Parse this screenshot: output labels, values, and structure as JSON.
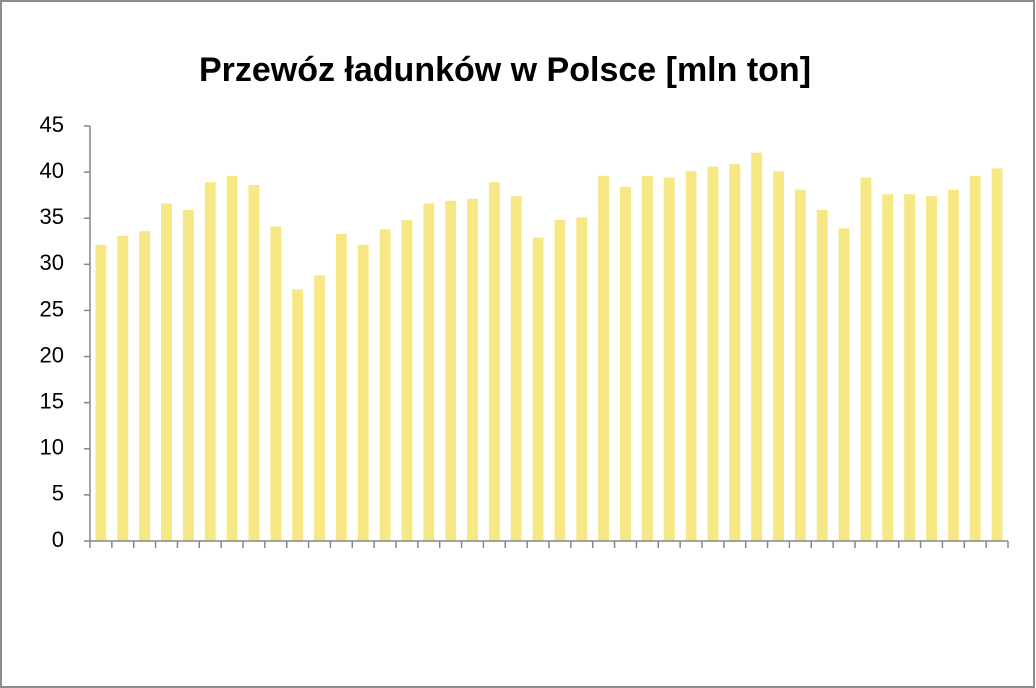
{
  "chart_data": {
    "type": "bar",
    "title": "Przewóz ładunków w Polsce [mln ton]",
    "categories": [
      null,
      null,
      null,
      null,
      null,
      null,
      null,
      null,
      null,
      null,
      null,
      null,
      null,
      null,
      null,
      null,
      null,
      null,
      null,
      null,
      null,
      null,
      null,
      null,
      null,
      null,
      null,
      null,
      null,
      null,
      null,
      null,
      null,
      null,
      null,
      null,
      null,
      null,
      null,
      null,
      null,
      null
    ],
    "values": [
      32.1,
      33.1,
      33.6,
      36.6,
      35.9,
      38.9,
      39.6,
      38.6,
      34.1,
      27.3,
      28.8,
      33.3,
      32.1,
      33.8,
      34.8,
      36.6,
      36.9,
      37.1,
      38.9,
      37.4,
      32.9,
      34.8,
      35.1,
      39.6,
      38.4,
      39.6,
      39.4,
      40.1,
      40.6,
      40.9,
      42.1,
      40.1,
      38.1,
      35.9,
      33.9,
      39.4,
      37.6,
      37.6,
      37.4,
      38.1,
      39.6,
      40.4
    ],
    "color": "#f7e886",
    "ylim": [
      0,
      45
    ],
    "yticks": [
      0,
      5,
      10,
      15,
      20,
      25,
      30,
      35,
      40,
      45
    ],
    "grid": false
  }
}
